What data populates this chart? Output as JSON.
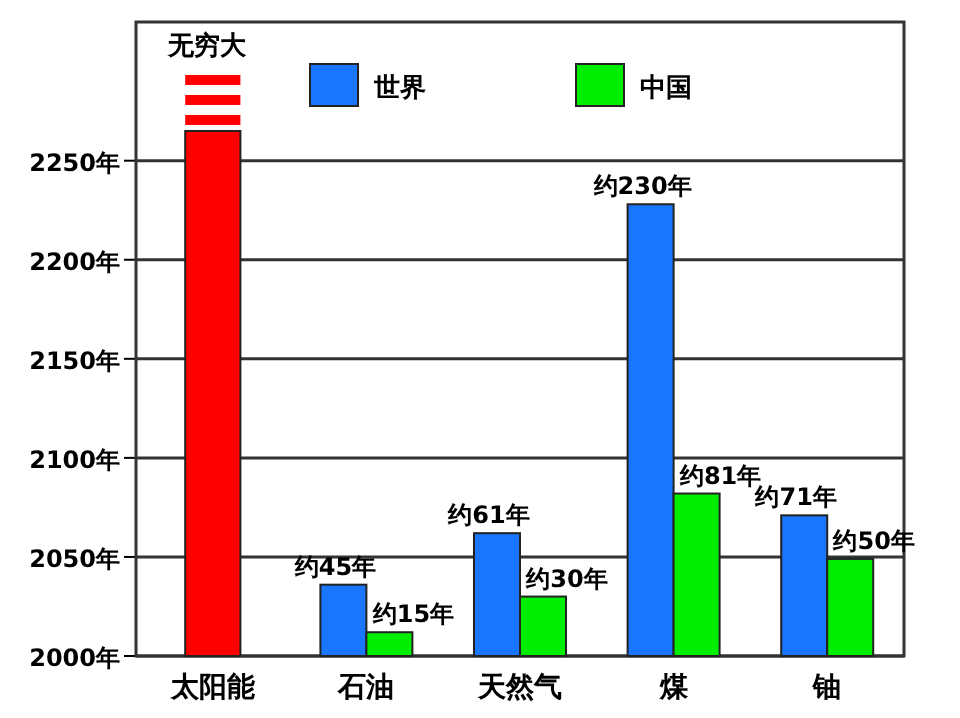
{
  "chart_data": {
    "type": "bar",
    "categories": [
      "太阳能",
      "石油",
      "天然气",
      "煤",
      "铀"
    ],
    "series": [
      {
        "name": "世界",
        "color": "#1a75ff",
        "colors": [
          "#ff0000",
          "#1a75ff",
          "#1a75ff",
          "#1a75ff",
          "#1a75ff"
        ],
        "values": [
          2265,
          2036,
          2062,
          2228,
          2071
        ],
        "value_labels": [
          null,
          "约45年",
          "约61年",
          "约230年",
          "约71年"
        ]
      },
      {
        "name": "中国",
        "color": "#00ee00",
        "values": [
          null,
          2012,
          2030,
          2082,
          2049
        ],
        "value_labels": [
          null,
          "约15年",
          "约30年",
          "约81年",
          "约50年"
        ]
      }
    ],
    "annotations": [
      "无穷大"
    ],
    "ylim": [
      2000,
      2320
    ],
    "yticks": [
      {
        "value": 2000,
        "label": "2000年"
      },
      {
        "value": 2050,
        "label": "2050年"
      },
      {
        "value": 2100,
        "label": "2100年"
      },
      {
        "value": 2150,
        "label": "2150年"
      },
      {
        "value": 2200,
        "label": "2200年"
      },
      {
        "value": 2250,
        "label": "2250年"
      }
    ],
    "grid": "y",
    "legend": "top"
  }
}
